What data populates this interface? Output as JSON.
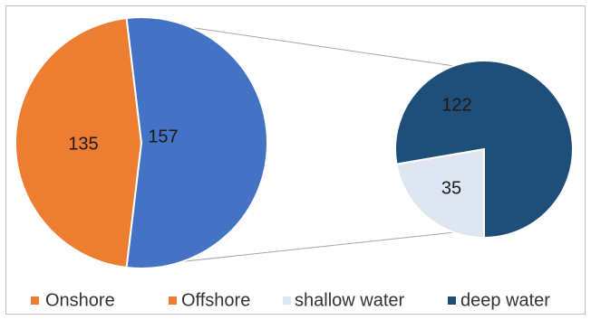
{
  "chart_data": {
    "type": "pie",
    "subtype": "pie-of-pie",
    "main_pie": {
      "categories": [
        "Onshore",
        "Offshore"
      ],
      "values": [
        135,
        157
      ],
      "colors": [
        "#ED7D31",
        "#4472C4"
      ]
    },
    "secondary_pie": {
      "categories": [
        "shallow water",
        "deep water"
      ],
      "values": [
        35,
        122
      ],
      "colors": [
        "#DDE6F2",
        "#1F4E79"
      ]
    },
    "legend": {
      "position": "bottom",
      "entries": [
        {
          "label": "Onshore",
          "color": "#ED7D31"
        },
        {
          "label": "Offshore",
          "color": "#ED7D31"
        },
        {
          "label": "shallow water",
          "color": "#DDE6F2"
        },
        {
          "label": "deep water",
          "color": "#1F4E79"
        }
      ]
    }
  }
}
